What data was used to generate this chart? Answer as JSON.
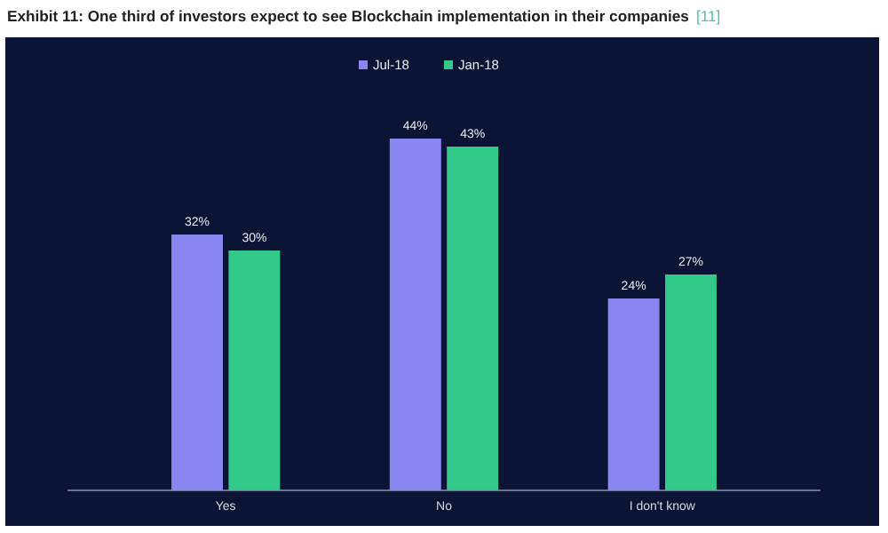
{
  "chart_data": {
    "type": "bar",
    "title": "Exhibit 11: One third of investors expect to see Blockchain implementation in their companies",
    "annotations": [
      "[11]"
    ],
    "categories": [
      "Yes",
      "No",
      "I don't know"
    ],
    "series": [
      {
        "name": "Jul-18",
        "color": "#8a85f0",
        "values": [
          32,
          44,
          24
        ],
        "value_labels": [
          "32%",
          "44%",
          "24%"
        ]
      },
      {
        "name": "Jan-18",
        "color": "#33c98b",
        "values": [
          30,
          43,
          27
        ],
        "value_labels": [
          "30%",
          "43%",
          "27%"
        ]
      }
    ],
    "legend": "top",
    "grid": false
  }
}
